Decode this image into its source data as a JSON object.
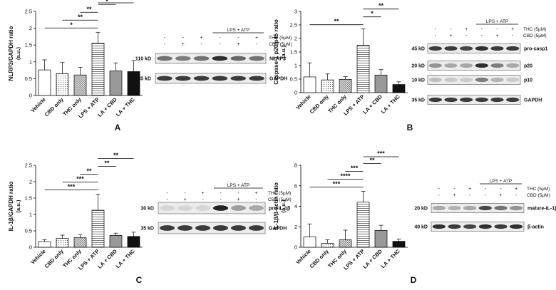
{
  "chart_data": [
    {
      "type": "bar",
      "panel": "A",
      "ylabel": "NLRP3/GAPDH ratio",
      "yunit": "(a.u.)",
      "ylim": [
        0,
        2.5
      ],
      "yticks": [
        "0",
        "0.5",
        "1",
        "1.5",
        "2",
        "2.5"
      ],
      "categories": [
        "Vehicle",
        "CBD only",
        "THC only",
        "LPS + ATP",
        "LA + CBD",
        "LA + THC"
      ],
      "values": [
        0.76,
        0.65,
        0.61,
        1.56,
        0.73,
        0.71
      ],
      "errors": [
        0.3,
        0.33,
        0.23,
        0.32,
        0.24,
        0.33
      ],
      "significance": [
        {
          "from": 0,
          "to": 3,
          "label": "*"
        },
        {
          "from": 1,
          "to": 3,
          "label": "**"
        },
        {
          "from": 2,
          "to": 3,
          "label": "**"
        },
        {
          "from": 3,
          "to": 4,
          "label": "*"
        },
        {
          "from": 3,
          "to": 5,
          "label": "*"
        }
      ]
    },
    {
      "type": "bar",
      "panel": "B",
      "ylabel": "Caspase-1 p20/p45 ratio",
      "yunit": "(a.u.)",
      "ylim": [
        0,
        3
      ],
      "yticks": [
        "0",
        "0.5",
        "1",
        "1.5",
        "2",
        "2.5",
        "3"
      ],
      "categories": [
        "Vehicle",
        "CBD only",
        "THC only",
        "LPS + ATP",
        "LA + CBD",
        "LA + THC"
      ],
      "values": [
        0.58,
        0.47,
        0.49,
        1.75,
        0.65,
        0.3
      ],
      "errors": [
        0.52,
        0.22,
        0.1,
        0.6,
        0.2,
        0.1
      ],
      "significance": [
        {
          "from": 0,
          "to": 3,
          "label": "**"
        },
        {
          "from": 3,
          "to": 4,
          "label": "*"
        },
        {
          "from": 3,
          "to": 5,
          "label": "**"
        }
      ]
    },
    {
      "type": "bar",
      "panel": "C",
      "ylabel": "IL-1β/GAPDH ratio",
      "yunit": "(a.u.)",
      "ylim": [
        0,
        2.5
      ],
      "yticks": [
        "0",
        "0.5",
        "1",
        "1.5",
        "2",
        "2.5"
      ],
      "categories": [
        "Vehicle",
        "CBD only",
        "THC only",
        "LPS + ATP",
        "LA + CBD",
        "LA + THC"
      ],
      "values": [
        0.17,
        0.27,
        0.29,
        1.13,
        0.36,
        0.33
      ],
      "errors": [
        0.06,
        0.1,
        0.09,
        0.49,
        0.07,
        0.13
      ],
      "significance": [
        {
          "from": 0,
          "to": 3,
          "label": "***"
        },
        {
          "from": 1,
          "to": 3,
          "label": "***"
        },
        {
          "from": 2,
          "to": 3,
          "label": "**"
        },
        {
          "from": 3,
          "to": 4,
          "label": "**"
        },
        {
          "from": 3,
          "to": 5,
          "label": "**"
        }
      ]
    },
    {
      "type": "bar",
      "panel": "D",
      "ylabel": "IL-1β/β-actin ratio",
      "yunit": "(a.u.)",
      "ylim": [
        0,
        8
      ],
      "yticks": [
        "0",
        "2",
        "4",
        "6",
        "8"
      ],
      "categories": [
        "Vehicle",
        "CBD only",
        "THC only",
        "LPS + ATP",
        "LA + CBD",
        "LA + THC"
      ],
      "values": [
        1.0,
        0.38,
        0.72,
        4.4,
        1.65,
        0.58
      ],
      "errors": [
        1.28,
        0.35,
        0.95,
        1.05,
        0.5,
        0.22
      ],
      "significance": [
        {
          "from": 0,
          "to": 3,
          "label": "***"
        },
        {
          "from": 1,
          "to": 3,
          "label": "****"
        },
        {
          "from": 2,
          "to": 3,
          "label": "***"
        },
        {
          "from": 3,
          "to": 4,
          "label": "**"
        },
        {
          "from": 3,
          "to": 5,
          "label": "***"
        }
      ]
    }
  ],
  "blots": [
    {
      "panel": "A",
      "lps_label": "LPS + ATP",
      "treatments": [
        {
          "label": "THC (5μM)",
          "signs": [
            "-",
            "-",
            "+",
            "-",
            "-",
            "+"
          ]
        },
        {
          "label": "CBD (5μM)",
          "signs": [
            "-",
            "+",
            "-",
            "-",
            "+",
            "-"
          ]
        }
      ],
      "rows": [
        {
          "size": "110 kD",
          "protein": "NLRP3",
          "intensity": [
            0.55,
            0.5,
            0.55,
            0.85,
            0.6,
            0.55
          ]
        },
        {
          "size": "35 kD",
          "protein": "GAPDH",
          "intensity": [
            0.8,
            0.8,
            0.8,
            0.8,
            0.8,
            0.8
          ]
        }
      ]
    },
    {
      "panel": "B",
      "lps_label": "LPS + ATP",
      "treatments": [
        {
          "label": "THC (5μM)",
          "signs": [
            "-",
            "-",
            "+",
            "-",
            "-",
            "+"
          ]
        },
        {
          "label": "CBD (5μM)",
          "signs": [
            "-",
            "+",
            "-",
            "-",
            "+",
            "-"
          ]
        }
      ],
      "rows": [
        {
          "size": "45 kD",
          "protein": "pro-casp1",
          "intensity": [
            0.8,
            0.8,
            0.75,
            0.85,
            0.8,
            0.8
          ]
        },
        {
          "size": "20 kD",
          "protein": "p20",
          "intensity": [
            0.4,
            0.3,
            0.3,
            0.85,
            0.5,
            0.3
          ]
        },
        {
          "size": "10 kD",
          "protein": "p10",
          "intensity": [
            0.2,
            0.15,
            0.15,
            0.5,
            0.25,
            0.15
          ]
        },
        {
          "size": "35 kD",
          "protein": "GAPDH",
          "intensity": [
            0.8,
            0.8,
            0.8,
            0.8,
            0.8,
            0.8
          ]
        }
      ]
    },
    {
      "panel": "C",
      "lps_label": "LPS + ATP",
      "treatments": [
        {
          "label": "THC (5μM)",
          "signs": [
            "-",
            "-",
            "+",
            "-",
            "-",
            "+"
          ]
        },
        {
          "label": "CBD (5μM)",
          "signs": [
            "-",
            "+",
            "-",
            "-",
            "+",
            "-"
          ]
        }
      ],
      "rows": [
        {
          "size": "30 kD",
          "protein": "pro-IL-1β",
          "intensity": [
            0.1,
            0.1,
            0.1,
            0.9,
            0.35,
            0.3
          ]
        },
        {
          "size": "35 kD",
          "protein": "GAPDH",
          "intensity": [
            0.8,
            0.8,
            0.8,
            0.8,
            0.8,
            0.8
          ]
        }
      ]
    },
    {
      "panel": "D",
      "lps_label": "LPS + ATP",
      "treatments": [
        {
          "label": "THC (5μM)",
          "signs": [
            "-",
            "-",
            "+",
            "-",
            "-",
            "+"
          ]
        },
        {
          "label": "CBD (5μM)",
          "signs": [
            "-",
            "+",
            "-",
            "-",
            "+",
            "-"
          ]
        }
      ],
      "rows": [
        {
          "size": "20 kD",
          "protein": "mature-IL-1β",
          "intensity": [
            0.3,
            0.25,
            0.3,
            0.75,
            0.55,
            0.4
          ]
        },
        {
          "size": "40 kD",
          "protein": "β-actin",
          "intensity": [
            0.85,
            0.8,
            0.75,
            0.85,
            0.8,
            0.85
          ]
        }
      ]
    }
  ]
}
